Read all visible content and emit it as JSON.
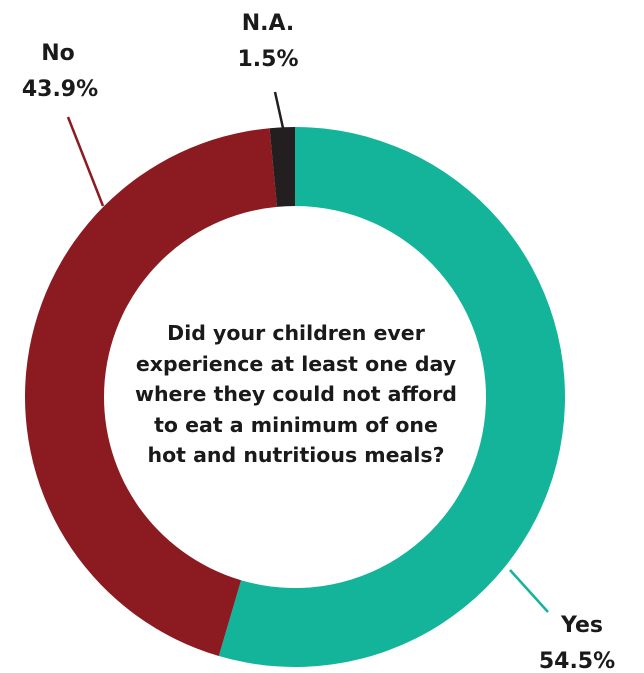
{
  "chart_data": {
    "type": "pie",
    "variant": "donut",
    "title": "Did your children ever experience at least one day where they could not afford to eat a minimum of one hot and nutritious meals?",
    "title_lines": [
      "Did your children ever",
      "experience at least one day",
      "where they could not afford",
      "to eat a minimum of one",
      "hot and nutritious meals?"
    ],
    "slices": [
      {
        "label": "Yes",
        "value": 54.5,
        "value_label": "54.5%",
        "color": "#13b49a"
      },
      {
        "label": "No",
        "value": 43.9,
        "value_label": "43.9%",
        "color": "#8b1a21"
      },
      {
        "label": "N.A.",
        "value": 1.5,
        "value_label": "1.5%",
        "color": "#231f20"
      }
    ],
    "legend": false
  }
}
